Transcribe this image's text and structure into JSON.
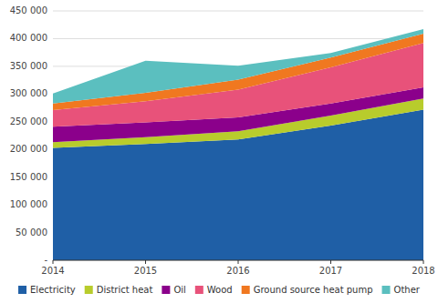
{
  "chart_data": {
    "type": "area",
    "stacked": true,
    "x": [
      2014,
      2015,
      2016,
      2017,
      2018
    ],
    "series": [
      {
        "name": "Electricity",
        "color": "#1f5fa6",
        "values": [
          203000,
          210000,
          218000,
          243000,
          272000
        ]
      },
      {
        "name": "District heat",
        "color": "#b8cc2c",
        "values": [
          10000,
          12000,
          15000,
          18000,
          20000
        ]
      },
      {
        "name": "Oil",
        "color": "#8b008b",
        "values": [
          28000,
          27000,
          25000,
          22000,
          20000
        ]
      },
      {
        "name": "Wood",
        "color": "#e8527a",
        "values": [
          30000,
          38000,
          50000,
          65000,
          80000
        ]
      },
      {
        "name": "Ground source heat pump",
        "color": "#f07820",
        "values": [
          12000,
          15000,
          18000,
          18000,
          17000
        ]
      },
      {
        "name": "Other",
        "color": "#5bbfbf",
        "values": [
          18000,
          58000,
          25000,
          8000,
          8000
        ]
      }
    ],
    "xlim": [
      2014,
      2018
    ],
    "xticks": [
      2014,
      2015,
      2016,
      2017,
      2018
    ],
    "ylim": [
      0,
      450000
    ],
    "yticks": [
      {
        "value": 0,
        "label": "-"
      },
      {
        "value": 50000,
        "label": "50 000"
      },
      {
        "value": 100000,
        "label": "100 000"
      },
      {
        "value": 150000,
        "label": "150 000"
      },
      {
        "value": 200000,
        "label": "200 000"
      },
      {
        "value": 250000,
        "label": "250 000"
      },
      {
        "value": 300000,
        "label": "300 000"
      },
      {
        "value": 350000,
        "label": "350 000"
      },
      {
        "value": 400000,
        "label": "400 000"
      },
      {
        "value": 450000,
        "label": "450 000"
      }
    ],
    "grid": true,
    "legend": "bottom"
  }
}
